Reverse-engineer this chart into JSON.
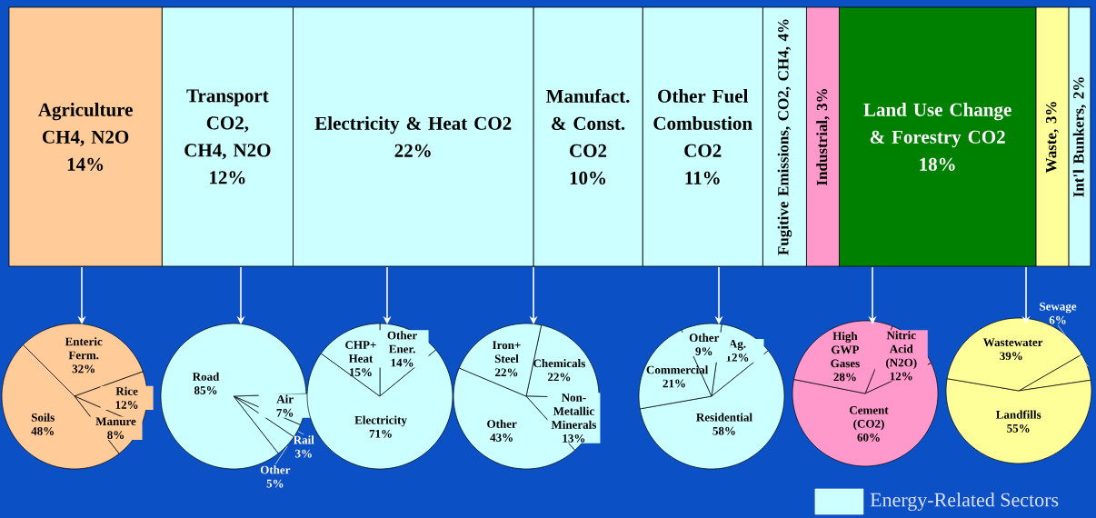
{
  "chart_data": [
    {
      "type": "bar",
      "stacked": true,
      "orientation": "horizontal",
      "tick_labels": false,
      "categories": [
        null
      ],
      "series": [
        {
          "name": "Agriculture CH4, N2O",
          "color": "#ffcc99",
          "values": [
            14
          ],
          "value_labels": [
            "14%"
          ]
        },
        {
          "name": "Transport CO2, CH4, N2O",
          "color": "#ccffff",
          "values": [
            12
          ],
          "value_labels": [
            "12%"
          ]
        },
        {
          "name": "Electricity & Heat CO2",
          "color": "#ccffff",
          "values": [
            22
          ],
          "value_labels": [
            "22%"
          ]
        },
        {
          "name": "Manufact. & Const. CO2",
          "color": "#ccffff",
          "values": [
            10
          ],
          "value_labels": [
            "10%"
          ]
        },
        {
          "name": "Other Fuel Combustion CO2",
          "color": "#ccffff",
          "values": [
            11
          ],
          "value_labels": [
            "11%"
          ]
        },
        {
          "name": "Fugitive Emissions, CO2, CH4,",
          "color": "#ccffff",
          "values": [
            4
          ],
          "value_labels": [
            "4%"
          ]
        },
        {
          "name": "Industrial,",
          "color": "#ff99cc",
          "values": [
            3
          ],
          "value_labels": [
            "3%"
          ]
        },
        {
          "name": "Land Use Change & Forestry CO2",
          "color": "#008000",
          "values": [
            18
          ],
          "value_labels": [
            "18%"
          ]
        },
        {
          "name": "Waste,",
          "color": "#ffff99",
          "values": [
            3
          ],
          "value_labels": [
            "3%"
          ]
        },
        {
          "name": "Int'l Bunkers,",
          "color": "#ccffff",
          "values": [
            2
          ],
          "value_labels": [
            "2%"
          ]
        }
      ],
      "annotations": [
        "Energy-Related Sectors"
      ]
    },
    {
      "type": "pie",
      "categories": [
        "Enteric Ferm.",
        "Rice",
        "Manure",
        "Soils"
      ],
      "values": [
        32,
        12,
        8,
        48
      ],
      "value_labels": [
        "32%",
        "12%",
        "8%",
        "48%"
      ],
      "colors": [
        "#ffcc99",
        "#ffcc99",
        "#ffcc99",
        "#ffcc99"
      ]
    },
    {
      "type": "pie",
      "categories": [
        "Air",
        "Rail",
        "Other",
        "Road"
      ],
      "values": [
        7,
        3,
        5,
        85
      ],
      "value_labels": [
        "7%",
        "3%",
        "5%",
        "85%"
      ],
      "colors": [
        "#ccffff",
        "#ccffff",
        "#ccffff",
        "#ccffff"
      ]
    },
    {
      "type": "pie",
      "categories": [
        "Other Ener.",
        "Electricity",
        "CHP+ Heat"
      ],
      "values": [
        14,
        71,
        15
      ],
      "value_labels": [
        "14%",
        "71%",
        "15%"
      ],
      "colors": [
        "#ccffff",
        "#ccffff",
        "#ccffff"
      ]
    },
    {
      "type": "pie",
      "categories": [
        "Chemicals",
        "Non-Metallic Minerals",
        "Other",
        "Iron+ Steel"
      ],
      "values": [
        22,
        13,
        43,
        22
      ],
      "value_labels": [
        "22%",
        "13%",
        "43%",
        "22%"
      ],
      "colors": [
        "#ccffff",
        "#ccffff",
        "#ccffff",
        "#ccffff"
      ]
    },
    {
      "type": "pie",
      "categories": [
        "Ag.",
        "Residential",
        "Commercial",
        "Other"
      ],
      "values": [
        12,
        58,
        21,
        9
      ],
      "value_labels": [
        "12%",
        "58%",
        "21%",
        "9%"
      ],
      "colors": [
        "#ccffff",
        "#ccffff",
        "#ccffff",
        "#ccffff"
      ]
    },
    {
      "type": "pie",
      "categories": [
        "Nitric Acid (N2O)",
        "Cement (CO2)",
        "High GWP Gases"
      ],
      "values": [
        12,
        60,
        28
      ],
      "value_labels": [
        "12%",
        "60%",
        "28%"
      ],
      "colors": [
        "#ff99cc",
        "#ff99cc",
        "#ff99cc"
      ]
    },
    {
      "type": "pie",
      "categories": [
        "Sewage",
        "Landfills",
        "Wastewater"
      ],
      "values": [
        6,
        55,
        39
      ],
      "value_labels": [
        "6%",
        "55%",
        "39%"
      ],
      "colors": [
        "#ffff99",
        "#ffff99",
        "#ffff99"
      ]
    }
  ]
}
